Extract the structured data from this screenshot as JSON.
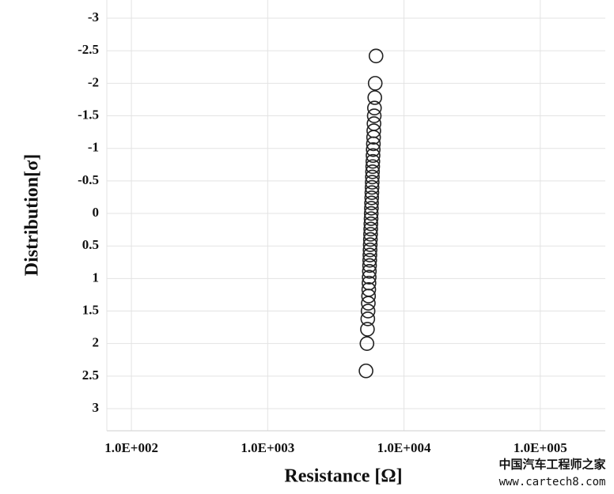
{
  "chart_data": {
    "type": "scatter",
    "x_label": "Resistance [Ω]",
    "y_label": "Distribution[σ]",
    "x_log": true,
    "y_inverted": true,
    "grid": true,
    "color": "#222222",
    "xlim": [
      66,
      300000
    ],
    "ylim": [
      -3.28,
      3.34
    ],
    "xticks": [
      {
        "value": 100,
        "label": "1.0E+002"
      },
      {
        "value": 1000,
        "label": "1.0E+003"
      },
      {
        "value": 10000,
        "label": "1.0E+004"
      },
      {
        "value": 100000,
        "label": "1.0E+005"
      }
    ],
    "yticks": [
      -3,
      -2.5,
      -2,
      -1.5,
      -1,
      -0.5,
      0,
      0.5,
      1,
      1.5,
      2,
      2.5,
      3
    ],
    "x": [
      6234,
      6150,
      6106,
      6074,
      6050,
      6026,
      6004,
      5984,
      5964,
      5946,
      5928,
      5910,
      5894,
      5878,
      5862,
      5846,
      5830,
      5814,
      5798,
      5782,
      5766,
      5750,
      5734,
      5718,
      5702,
      5686,
      5670,
      5654,
      5638,
      5622,
      5606,
      5590,
      5572,
      5554,
      5536,
      5516,
      5496,
      5474,
      5450,
      5426,
      5394,
      5350,
      5266
    ],
    "values": [
      -2.42,
      -2.0,
      -1.78,
      -1.62,
      -1.5,
      -1.38,
      -1.27,
      -1.17,
      -1.07,
      -0.98,
      -0.89,
      -0.8,
      -0.72,
      -0.64,
      -0.56,
      -0.48,
      -0.4,
      -0.32,
      -0.24,
      -0.16,
      -0.08,
      0,
      0.08,
      0.16,
      0.24,
      0.32,
      0.4,
      0.48,
      0.56,
      0.64,
      0.72,
      0.8,
      0.89,
      0.98,
      1.07,
      1.17,
      1.27,
      1.38,
      1.5,
      1.62,
      1.78,
      2.0,
      2.42
    ]
  },
  "watermark": {
    "title": "中国汽车工程师之家",
    "url": "www.cartech8.com"
  }
}
